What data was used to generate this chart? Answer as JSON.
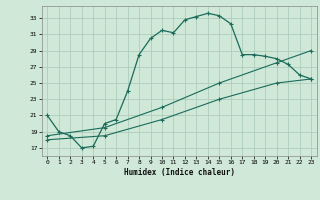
{
  "xlabel": "Humidex (Indice chaleur)",
  "bg_color": "#cfe8d8",
  "grid_color": "#a8c8b8",
  "line_color": "#1a6b5a",
  "xlim": [
    -0.5,
    23.5
  ],
  "ylim": [
    16,
    34.5
  ],
  "yticks": [
    17,
    19,
    21,
    23,
    25,
    27,
    29,
    31,
    33
  ],
  "xticks": [
    0,
    1,
    2,
    3,
    4,
    5,
    6,
    7,
    8,
    9,
    10,
    11,
    12,
    13,
    14,
    15,
    16,
    17,
    18,
    19,
    20,
    21,
    22,
    23
  ],
  "line1_x": [
    0,
    1,
    2,
    3,
    4,
    5,
    6,
    7,
    8,
    9,
    10,
    11,
    12,
    13,
    14,
    15,
    16,
    17,
    18,
    19,
    20,
    21,
    22,
    23
  ],
  "line1_y": [
    21,
    19,
    18.5,
    17,
    17.2,
    20,
    20.5,
    24,
    28.5,
    30.5,
    31.5,
    31.2,
    32.8,
    33.2,
    33.6,
    33.3,
    32.3,
    28.5,
    28.5,
    28.3,
    28,
    27.3,
    26,
    25.5
  ],
  "line2_x": [
    0,
    5,
    10,
    15,
    20,
    23
  ],
  "line2_y": [
    18,
    18.5,
    20.5,
    23,
    25.0,
    25.5
  ],
  "line3_x": [
    0,
    5,
    10,
    15,
    20,
    23
  ],
  "line3_y": [
    18.5,
    19.5,
    22,
    25,
    27.5,
    29.0
  ]
}
